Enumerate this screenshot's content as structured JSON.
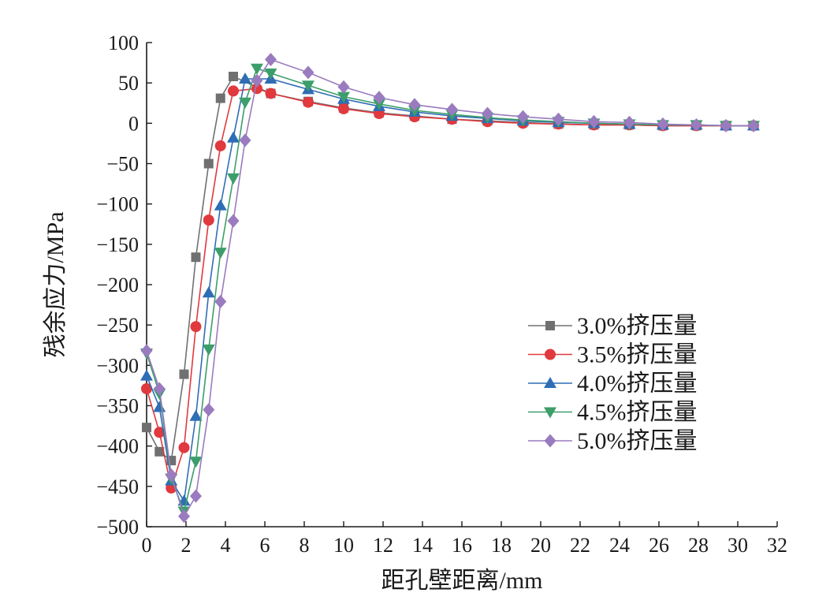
{
  "chart_data": {
    "type": "line",
    "xlabel": "距孔壁距离/mm",
    "ylabel": "残余应力/MPa",
    "xlim": [
      0,
      32
    ],
    "ylim": [
      -500,
      100
    ],
    "x_ticks": [
      0,
      2,
      4,
      6,
      8,
      10,
      12,
      14,
      16,
      18,
      20,
      22,
      24,
      26,
      28,
      30,
      32
    ],
    "y_ticks": [
      100,
      50,
      0,
      -50,
      -100,
      -150,
      -200,
      -250,
      -300,
      -350,
      -400,
      -450,
      -500
    ],
    "grid": false,
    "legend_position": "right-center",
    "series": [
      {
        "name": "3.0%挤压量",
        "color": "#707070",
        "marker": "square",
        "x": [
          0,
          0.65,
          1.25,
          1.9,
          2.5,
          3.15,
          3.75,
          4.4,
          6.3,
          8.2,
          10.0,
          11.8,
          13.6,
          15.5,
          17.3,
          19.1,
          20.9,
          22.7,
          24.5,
          26.2,
          27.9,
          29.4,
          30.8
        ],
        "y": [
          -377,
          -407,
          -418,
          -311,
          -166,
          -50,
          31,
          58,
          37,
          27,
          19,
          13,
          9,
          5,
          3,
          1,
          -1,
          -2,
          -2,
          -3,
          -3,
          -3,
          -3
        ]
      },
      {
        "name": "3.5%挤压量",
        "color": "#e0393e",
        "marker": "circle",
        "x": [
          0,
          0.65,
          1.25,
          1.9,
          2.5,
          3.15,
          3.75,
          4.4,
          5.6,
          6.3,
          8.2,
          10.0,
          11.8,
          13.6,
          15.5,
          17.3,
          19.1,
          20.9,
          22.7,
          24.5,
          26.2,
          27.9,
          29.4,
          30.8
        ],
        "y": [
          -329,
          -383,
          -452,
          -402,
          -252,
          -120,
          -28,
          40,
          43,
          37,
          26,
          18,
          12,
          8,
          5,
          2,
          0,
          -1,
          -2,
          -2,
          -3,
          -3,
          -3,
          -3
        ]
      },
      {
        "name": "4.0%挤压量",
        "color": "#2f6db5",
        "marker": "triangle-up",
        "x": [
          0,
          0.65,
          1.25,
          1.9,
          2.5,
          3.15,
          3.75,
          4.4,
          5.0,
          6.3,
          8.2,
          10.0,
          11.8,
          13.6,
          15.5,
          17.3,
          19.1,
          20.9,
          22.7,
          24.5,
          26.2,
          27.9,
          29.4,
          30.8
        ],
        "y": [
          -313,
          -352,
          -443,
          -468,
          -363,
          -210,
          -102,
          -18,
          55,
          55,
          42,
          30,
          21,
          14,
          9,
          6,
          3,
          1,
          0,
          -1,
          -2,
          -2,
          -3,
          -3
        ]
      },
      {
        "name": "4.5%挤压量",
        "color": "#3c9e6a",
        "marker": "triangle-down",
        "x": [
          0,
          0.65,
          1.25,
          1.9,
          2.5,
          3.15,
          3.75,
          4.4,
          5.0,
          5.6,
          6.3,
          8.2,
          10.0,
          11.8,
          13.6,
          15.5,
          17.3,
          19.1,
          20.9,
          22.7,
          24.5,
          26.2,
          27.9,
          29.4,
          30.8
        ],
        "y": [
          -285,
          -335,
          -440,
          -481,
          -419,
          -280,
          -160,
          -68,
          26,
          68,
          62,
          47,
          33,
          24,
          16,
          11,
          7,
          4,
          2,
          0,
          -1,
          -2,
          -2,
          -3,
          -3
        ]
      },
      {
        "name": "5.0%挤压量",
        "color": "#9a7bbf",
        "marker": "diamond",
        "x": [
          0,
          0.65,
          1.25,
          1.9,
          2.5,
          3.15,
          3.75,
          4.4,
          5.0,
          5.6,
          6.3,
          8.2,
          10.0,
          11.8,
          13.6,
          15.5,
          17.3,
          19.1,
          20.9,
          22.7,
          24.5,
          26.2,
          27.9,
          29.4,
          30.8
        ],
        "y": [
          -282,
          -329,
          -436,
          -487,
          -462,
          -355,
          -221,
          -121,
          -21,
          53,
          79,
          63,
          45,
          32,
          23,
          17,
          12,
          8,
          5,
          2,
          1,
          -1,
          -2,
          -3,
          -3
        ]
      }
    ]
  }
}
